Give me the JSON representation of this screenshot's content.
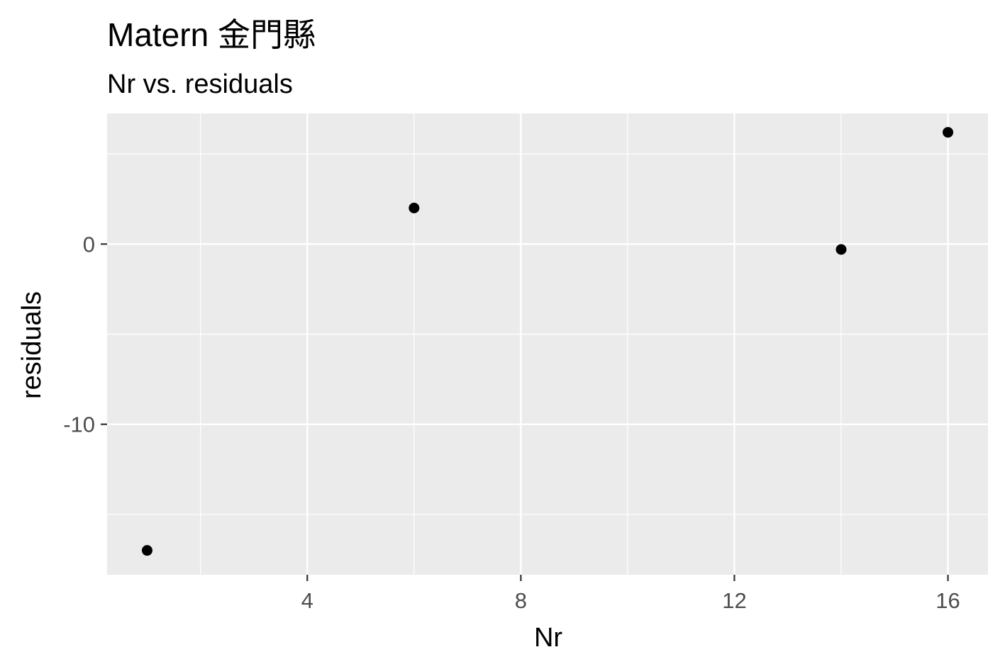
{
  "chart_data": {
    "type": "scatter",
    "title": "Matern 金門縣",
    "subtitle": "Nr vs. residuals",
    "xlabel": "Nr",
    "ylabel": "residuals",
    "x": [
      1,
      6,
      14,
      16
    ],
    "y": [
      -17,
      2,
      -0.3,
      6.2
    ],
    "xlim": [
      0.25,
      16.75
    ],
    "ylim": [
      -18.35,
      7.25
    ],
    "x_major_ticks": [
      4,
      8,
      12,
      16
    ],
    "x_minor_ticks": [
      2,
      6,
      10,
      14
    ],
    "y_major_ticks": [
      0,
      -10
    ],
    "y_minor_ticks": [
      5,
      -5,
      -15
    ],
    "grid": true,
    "colors": {
      "panel_background": "#ebebeb",
      "grid_major": "#ffffff",
      "grid_minor": "#ffffff",
      "point": "#000000",
      "tick_label": "#4d4d4d",
      "tick_mark": "#333333"
    }
  }
}
